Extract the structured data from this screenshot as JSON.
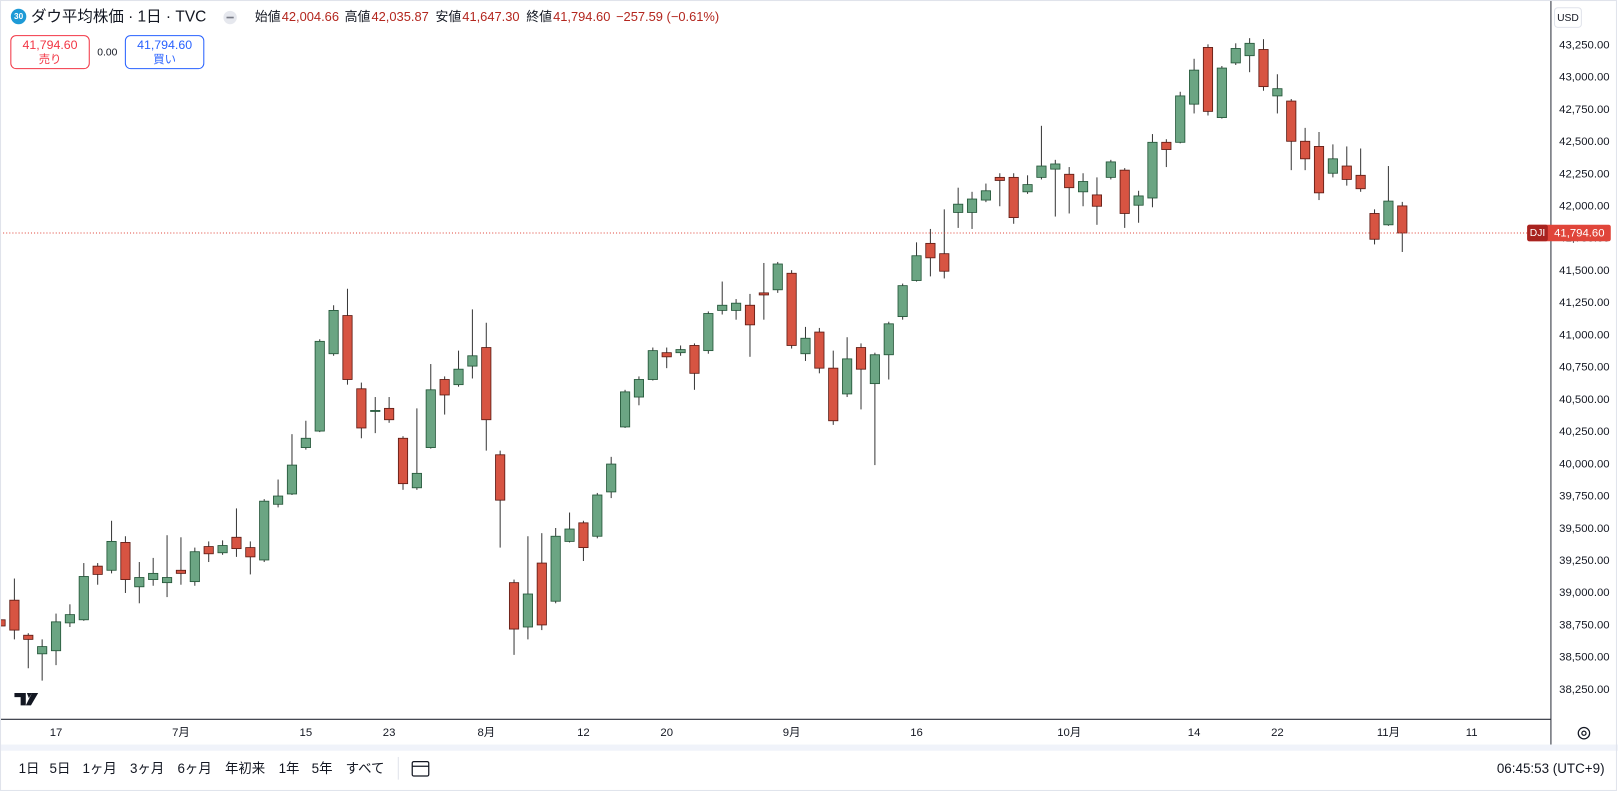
{
  "header": {
    "badge": "30",
    "title": "ダウ平均株価 · 1日 · TVC",
    "ohlc": [
      {
        "label": "始値",
        "value": "42,004.66"
      },
      {
        "label": "高値",
        "value": "42,035.87"
      },
      {
        "label": "安値",
        "value": "41,647.30"
      },
      {
        "label": "終値",
        "value": "41,794.60"
      }
    ],
    "change": "−257.59 (−0.61%)"
  },
  "trade": {
    "sell": {
      "price": "41,794.60",
      "label": "売り"
    },
    "spread": "0.00",
    "buy": {
      "price": "41,794.60",
      "label": "買い"
    }
  },
  "currency": "USD",
  "toolbar": {
    "ranges": [
      "1日",
      "5日",
      "1ヶ月",
      "3ヶ月",
      "6ヶ月",
      "年初来",
      "1年",
      "5年",
      "すべて"
    ],
    "time": "06:45:53 (UTC+9)"
  },
  "chart_data": {
    "type": "candlestick",
    "symbol": "DJI",
    "up_color": "#6ba583",
    "up_border": "#225437",
    "down_color": "#d75442",
    "down_border": "#5b1a13",
    "wick_color": "#3a3a3a",
    "categories": [
      null,
      null,
      null,
      null,
      "17",
      null,
      null,
      null,
      null,
      null,
      null,
      null,
      null,
      "7月",
      null,
      null,
      null,
      null,
      null,
      null,
      null,
      null,
      "15",
      null,
      null,
      null,
      null,
      null,
      "23",
      null,
      null,
      null,
      null,
      null,
      null,
      "8月",
      null,
      null,
      null,
      null,
      null,
      null,
      "12",
      null,
      null,
      null,
      null,
      null,
      "20",
      null,
      null,
      null,
      null,
      null,
      null,
      null,
      null,
      "9月",
      null,
      null,
      null,
      null,
      null,
      null,
      null,
      null,
      "16",
      null,
      null,
      null,
      null,
      null,
      null,
      null,
      null,
      null,
      null,
      "10月",
      null,
      null,
      null,
      null,
      null,
      null,
      null,
      null,
      "14",
      null,
      null,
      null,
      null,
      null,
      "22",
      null,
      null,
      null,
      null,
      null,
      null,
      null,
      "11月",
      null,
      null,
      null,
      null,
      null,
      "11"
    ],
    "open": [
      38794,
      38946,
      38674,
      38530,
      38554,
      38770,
      38794,
      39210,
      39178,
      39394,
      39050,
      39106,
      39082,
      39178,
      39090,
      39362,
      39314,
      39434,
      39354,
      39258,
      39690,
      39770,
      40130,
      40258,
      40858,
      41154,
      40586,
      40410,
      40434,
      40202,
      39818,
      40130,
      40658,
      40618,
      40762,
      40906,
      40074,
      39082,
      38738,
      39234,
      38938,
      39402,
      39546,
      39442,
      39786,
      40290,
      40522,
      40658,
      40866,
      40866,
      40922,
      40882,
      41194,
      41194,
      41234,
      41330,
      41354,
      41482,
      40858,
      41026,
      40746,
      40546,
      40906,
      40626,
      40850,
      41146,
      41426,
      41714,
      41634,
      41954,
      41954,
      42050,
      42226,
      42226,
      42114,
      42226,
      42290,
      42250,
      42114,
      42090,
      42226,
      42282,
      42010,
      42066,
      42498,
      42498,
      42794,
      43234,
      42690,
      43114,
      43170,
      43218,
      42858,
      42818,
      42506,
      42466,
      42258,
      42314,
      42242,
      41946,
      41858,
      42004.66,
      null,
      null,
      null,
      null,
      null
    ],
    "high": [
      38800,
      39114,
      38690,
      38642,
      38842,
      38914,
      39234,
      39234,
      39562,
      39442,
      39242,
      39274,
      39450,
      39434,
      39354,
      39402,
      39410,
      39658,
      39402,
      39730,
      39882,
      40234,
      40338,
      40970,
      41234,
      41362,
      40634,
      40522,
      40522,
      40218,
      40434,
      40778,
      40682,
      40882,
      41202,
      41098,
      40106,
      39106,
      39442,
      39466,
      39506,
      39626,
      39562,
      39778,
      40058,
      40578,
      40682,
      40906,
      40906,
      40922,
      40938,
      41186,
      41418,
      41282,
      41322,
      41562,
      41570,
      41506,
      41066,
      41058,
      40882,
      40986,
      40938,
      40866,
      41106,
      41402,
      41722,
      41826,
      41978,
      42146,
      42114,
      42178,
      42258,
      42258,
      42242,
      42626,
      42362,
      42306,
      42258,
      42226,
      42362,
      42298,
      42122,
      42562,
      42522,
      42890,
      43146,
      43258,
      43090,
      43266,
      43306,
      43298,
      43026,
      42834,
      42610,
      42578,
      42482,
      42466,
      42450,
      41978,
      42314,
      42035.87,
      null,
      null,
      null,
      null,
      null
    ],
    "low": [
      38740,
      38642,
      38418,
      38322,
      38442,
      38738,
      38786,
      39066,
      39154,
      39002,
      38922,
      39058,
      38970,
      39066,
      39058,
      39242,
      39298,
      39282,
      39146,
      39242,
      39666,
      39762,
      40114,
      40250,
      40842,
      40618,
      40202,
      40242,
      40322,
      39802,
      39802,
      40122,
      40386,
      40602,
      40666,
      40106,
      39354,
      38522,
      38642,
      38714,
      38922,
      39394,
      39250,
      39426,
      39738,
      40282,
      40458,
      40650,
      40746,
      40842,
      40578,
      40858,
      41162,
      41122,
      40834,
      41122,
      41330,
      40898,
      40802,
      40706,
      40306,
      40522,
      40426,
      39994,
      40658,
      41122,
      41418,
      41458,
      41442,
      41834,
      41826,
      42034,
      42002,
      41866,
      42098,
      42210,
      41922,
      41946,
      42002,
      41858,
      42210,
      41834,
      41874,
      41994,
      42306,
      42490,
      42722,
      42706,
      42682,
      43098,
      43042,
      42898,
      42722,
      42282,
      42282,
      42050,
      42226,
      42162,
      42114,
      41706,
      41850,
      41647.3,
      null,
      null,
      null,
      null,
      null
    ],
    "close": [
      38746,
      38714,
      38642,
      38586,
      38778,
      38834,
      39130,
      39146,
      39402,
      39106,
      39122,
      39154,
      39122,
      39154,
      39322,
      39306,
      39370,
      39346,
      39282,
      39714,
      39754,
      39994,
      40202,
      40954,
      41194,
      40658,
      40282,
      40418,
      40346,
      39850,
      39930,
      40578,
      40538,
      40738,
      40842,
      40346,
      39722,
      38722,
      38994,
      38754,
      39442,
      39498,
      39354,
      39762,
      40002,
      40562,
      40658,
      40882,
      40834,
      40890,
      40706,
      41170,
      41234,
      41250,
      41082,
      41314,
      41554,
      40922,
      40978,
      40746,
      40338,
      40818,
      40738,
      40850,
      41090,
      41386,
      41618,
      41602,
      41498,
      42018,
      42058,
      42122,
      42202,
      41914,
      42170,
      42314,
      42330,
      42146,
      42194,
      42002,
      42346,
      41946,
      42082,
      42498,
      42442,
      42858,
      43058,
      42738,
      43074,
      43226,
      43266,
      42930,
      42914,
      42506,
      42370,
      42106,
      42370,
      42210,
      42138,
      41746,
      42042,
      41794.6,
      null,
      null,
      null,
      null,
      null
    ],
    "ylim": [
      38026,
      43586
    ],
    "yticks": [
      {
        "value": 38250,
        "label": "38,250.00"
      },
      {
        "value": 38500,
        "label": "38,500.00"
      },
      {
        "value": 38750,
        "label": "38,750.00"
      },
      {
        "value": 39000,
        "label": "39,000.00"
      },
      {
        "value": 39250,
        "label": "39,250.00"
      },
      {
        "value": 39500,
        "label": "39,500.00"
      },
      {
        "value": 39750,
        "label": "39,750.00"
      },
      {
        "value": 40000,
        "label": "40,000.00"
      },
      {
        "value": 40250,
        "label": "40,250.00"
      },
      {
        "value": 40500,
        "label": "40,500.00"
      },
      {
        "value": 40750,
        "label": "40,750.00"
      },
      {
        "value": 41000,
        "label": "41,000.00"
      },
      {
        "value": 41250,
        "label": "41,250.00"
      },
      {
        "value": 41500,
        "label": "41,500.00"
      },
      {
        "value": 41750,
        "label": "41,750.00"
      },
      {
        "value": 42000,
        "label": "42,000.00"
      },
      {
        "value": 42250,
        "label": "42,250.00"
      },
      {
        "value": 42500,
        "label": "42,500.00"
      },
      {
        "value": 42750,
        "label": "42,750.00"
      },
      {
        "value": 43000,
        "label": "43,000.00"
      },
      {
        "value": 43250,
        "label": "43,250.00"
      }
    ],
    "grid": false,
    "last_price": {
      "value": 41794.6,
      "label": "41,794.60"
    },
    "last_price_color": "#e0453a"
  }
}
